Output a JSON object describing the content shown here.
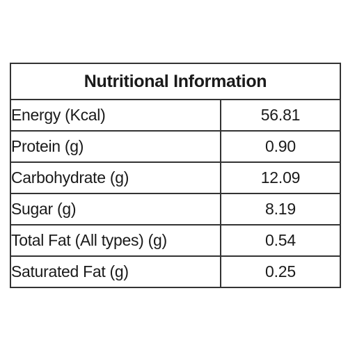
{
  "table": {
    "title": "Nutritional Information",
    "rows": [
      {
        "label": "Energy (Kcal)",
        "value": "56.81"
      },
      {
        "label": "Protein (g)",
        "value": "0.90"
      },
      {
        "label": "Carbohydrate (g)",
        "value": "12.09"
      },
      {
        "label": "Sugar (g)",
        "value": "8.19"
      },
      {
        "label": "Total Fat (All types) (g)",
        "value": "0.54"
      },
      {
        "label": "Saturated Fat (g)",
        "value": "0.25"
      }
    ]
  }
}
